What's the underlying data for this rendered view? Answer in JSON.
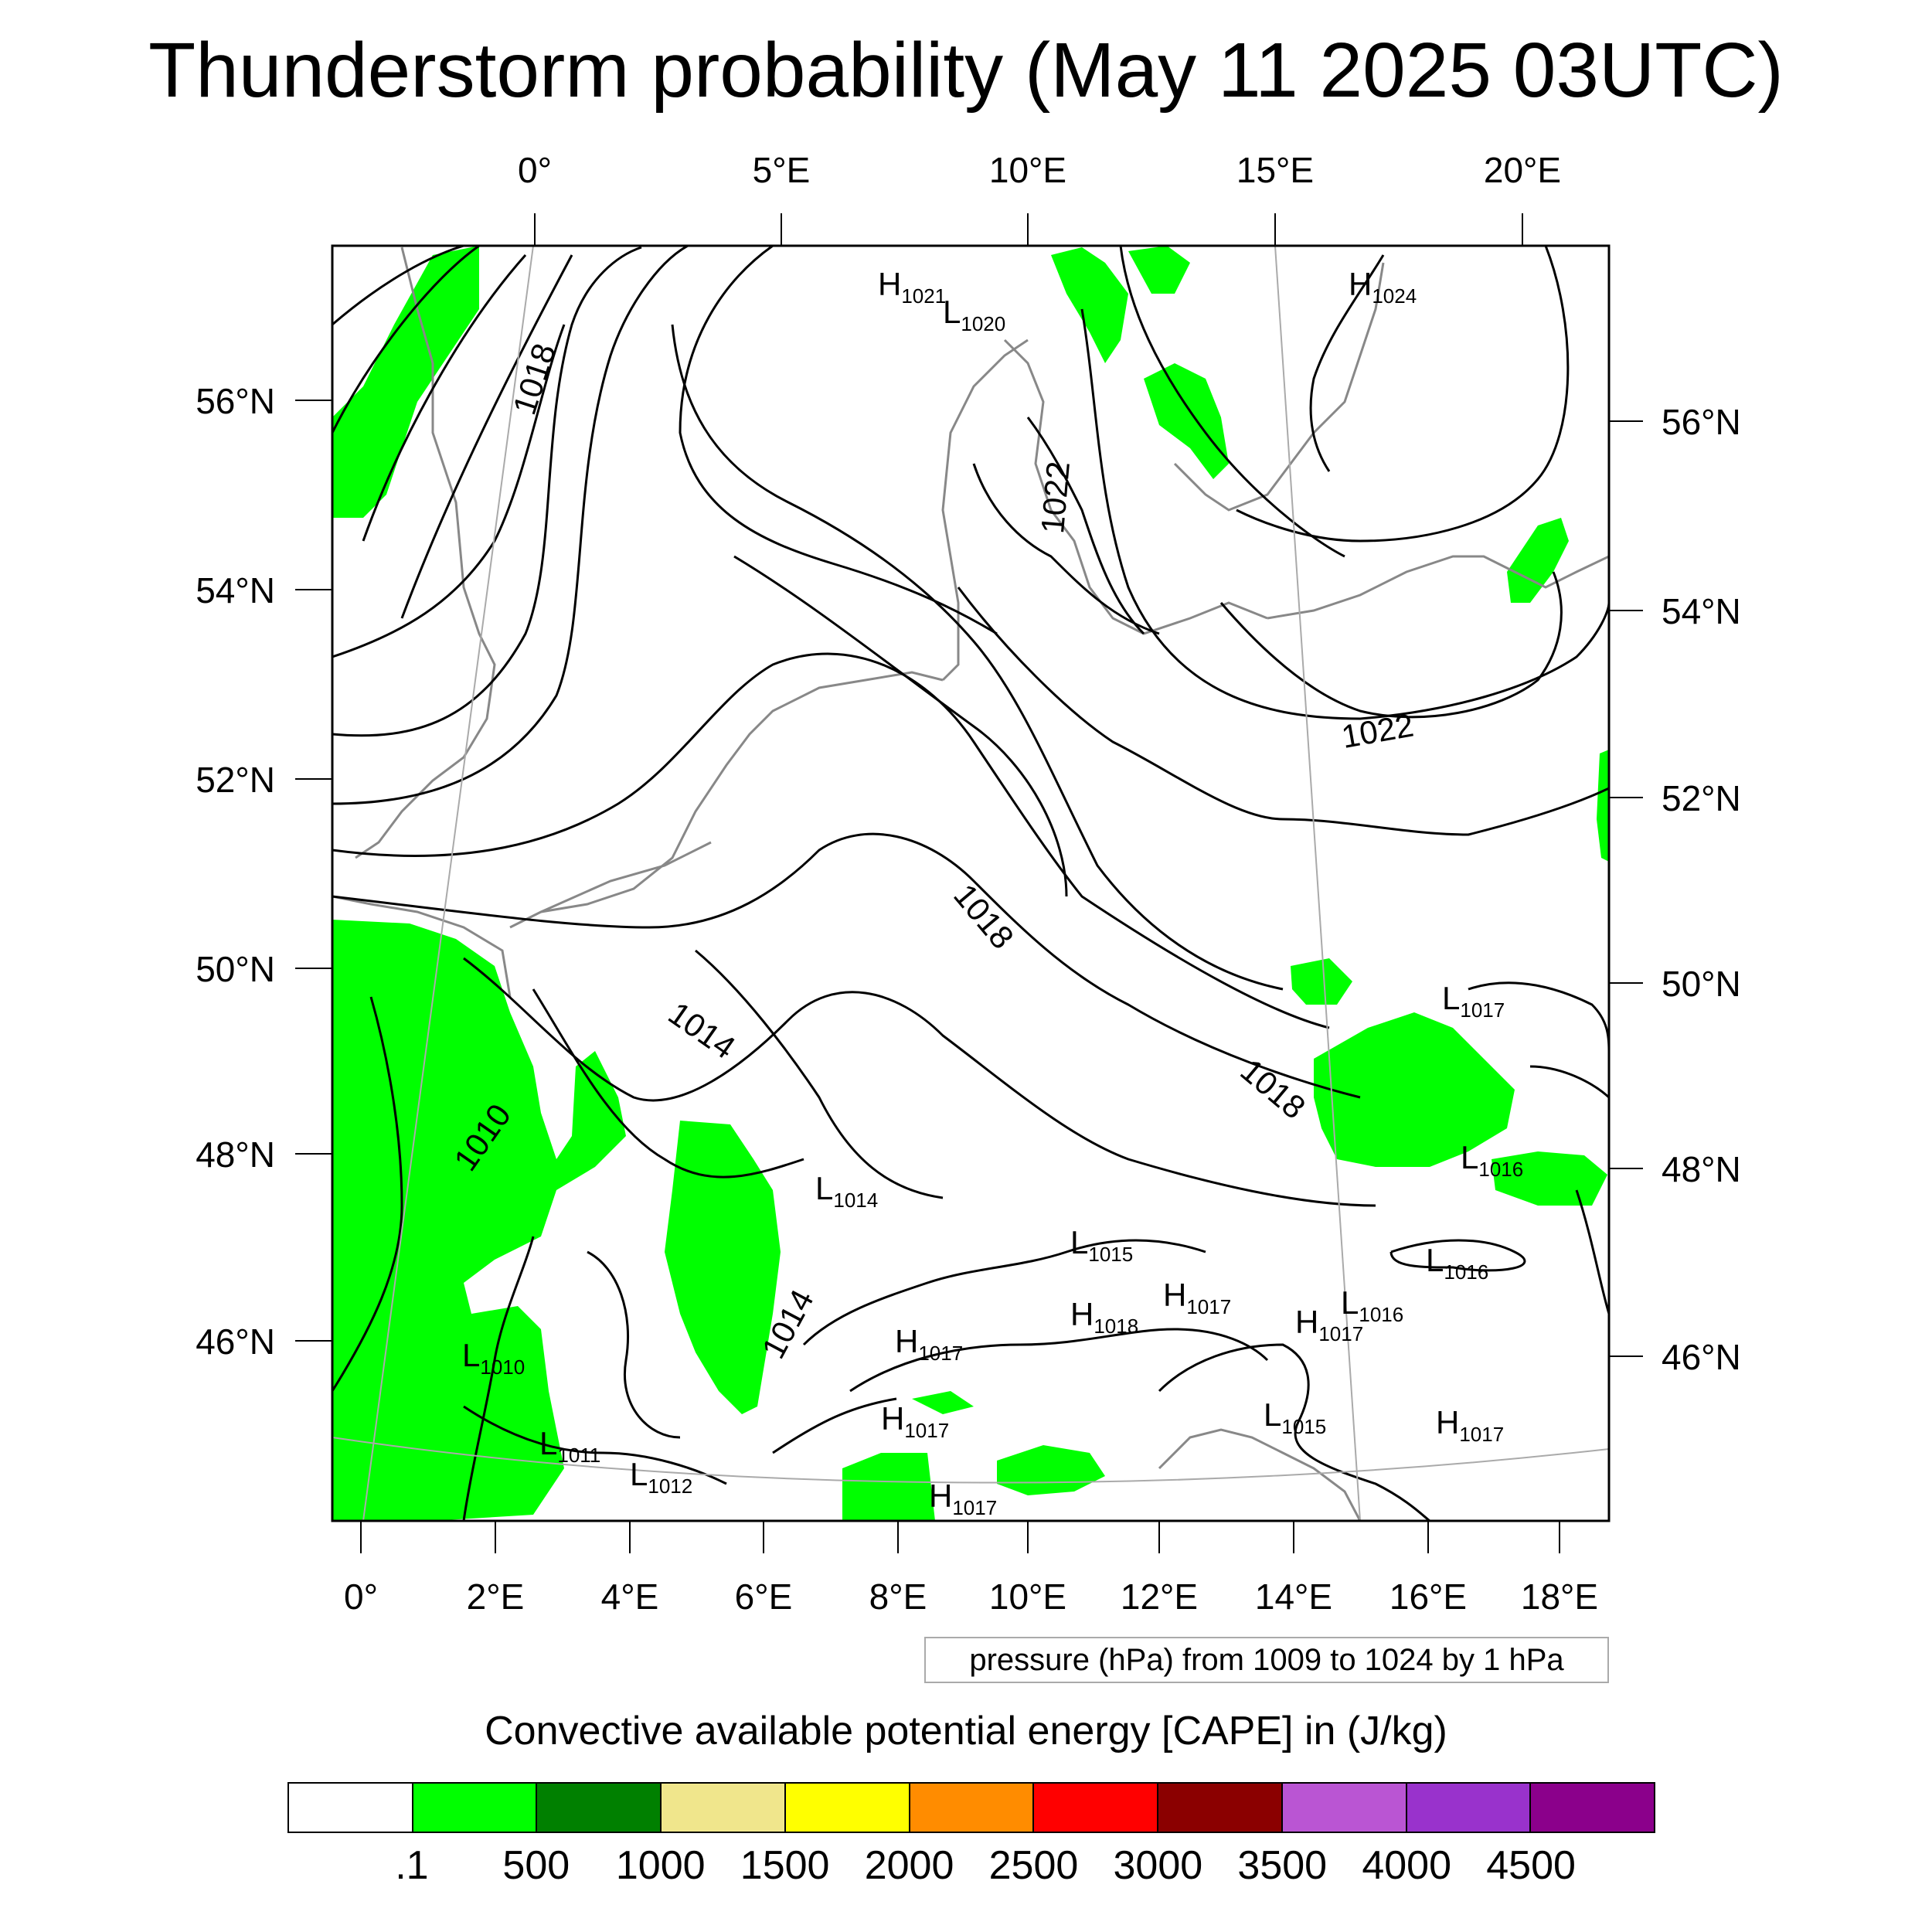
{
  "title": "Thunderstorm probability (May 11 2025 03UTC)",
  "top_lon_labels": [
    "0°",
    "5°E",
    "10°E",
    "15°E",
    "20°E"
  ],
  "bottom_lon_labels": [
    "0°",
    "2°E",
    "4°E",
    "6°E",
    "8°E",
    "10°E",
    "12°E",
    "14°E",
    "16°E",
    "18°E"
  ],
  "left_lat_labels": [
    "56°N",
    "54°N",
    "52°N",
    "50°N",
    "48°N",
    "46°N"
  ],
  "right_lat_labels": [
    "56°N",
    "54°N",
    "52°N",
    "50°N",
    "48°N",
    "46°N"
  ],
  "contour_labels": [
    "1018",
    "1022",
    "1022",
    "1018",
    "1018",
    "1014",
    "1014",
    "1010"
  ],
  "pressure_centers": [
    {
      "letter": "H",
      "value": "1021"
    },
    {
      "letter": "L",
      "value": "1020"
    },
    {
      "letter": "H",
      "value": "1024"
    },
    {
      "letter": "L",
      "value": "1017"
    },
    {
      "letter": "L",
      "value": "1016"
    },
    {
      "letter": "L",
      "value": "1014"
    },
    {
      "letter": "L",
      "value": "1015"
    },
    {
      "letter": "H",
      "value": "1017"
    },
    {
      "letter": "H",
      "value": "1018"
    },
    {
      "letter": "L",
      "value": "1016"
    },
    {
      "letter": "L",
      "value": "1016"
    },
    {
      "letter": "H",
      "value": "1017"
    },
    {
      "letter": "H",
      "value": "1017"
    },
    {
      "letter": "L",
      "value": "1010"
    },
    {
      "letter": "H",
      "value": "1017"
    },
    {
      "letter": "L",
      "value": "1015"
    },
    {
      "letter": "H",
      "value": "1017"
    },
    {
      "letter": "L",
      "value": "1011"
    },
    {
      "letter": "L",
      "value": "1012"
    },
    {
      "letter": "H",
      "value": "1017"
    }
  ],
  "contour_info": "pressure (hPa) from 1009 to 1024 by 1 hPa",
  "colorbar": {
    "title": "Convective available potential energy [CAPE] in (J/kg)",
    "colors": [
      "#ffffff",
      "#00ff00",
      "#008000",
      "#f0e68c",
      "#ffff00",
      "#ff8c00",
      "#ff0000",
      "#8b0000",
      "#ba55d3",
      "#9932cc",
      "#8b008b"
    ],
    "labels": [
      ".1",
      "500",
      "1000",
      "1500",
      "2000",
      "2500",
      "3000",
      "3500",
      "4000",
      "4500"
    ]
  },
  "colors": {
    "cape_low": "#00ff00",
    "coastline": "#888888",
    "isobar": "#000000"
  }
}
